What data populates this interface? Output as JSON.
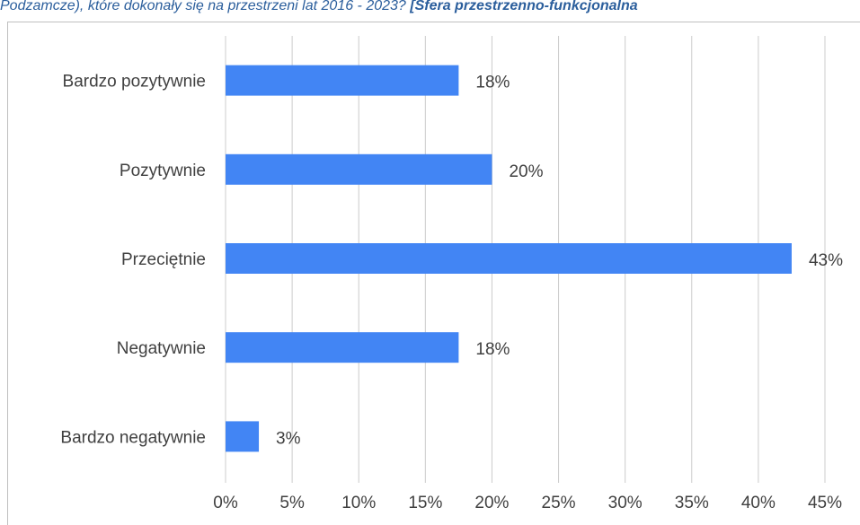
{
  "caption": {
    "text": "Podzamcze), które dokonały się na przestrzeni lat 2016 - 2023? ",
    "bold_text": "[Sfera przestrzenno-funkcjonalna"
  },
  "chart_data": {
    "type": "bar",
    "orientation": "horizontal",
    "categories": [
      "Bardzo pozytywnie",
      "Pozytywnie",
      "Przeciętnie",
      "Negatywnie",
      "Bardzo negatywnie"
    ],
    "values": [
      17.5,
      20,
      42.5,
      17.5,
      2.5
    ],
    "value_labels": [
      "18%",
      "20%",
      "43%",
      "18%",
      "3%"
    ],
    "xlim": [
      0,
      45
    ],
    "xticks": [
      "0%",
      "5%",
      "10%",
      "15%",
      "20%",
      "25%",
      "30%",
      "35%",
      "40%",
      "45%"
    ],
    "bar_color": "#4285f4",
    "grid_color": "#cccccc",
    "grid": true,
    "legend": "none"
  }
}
